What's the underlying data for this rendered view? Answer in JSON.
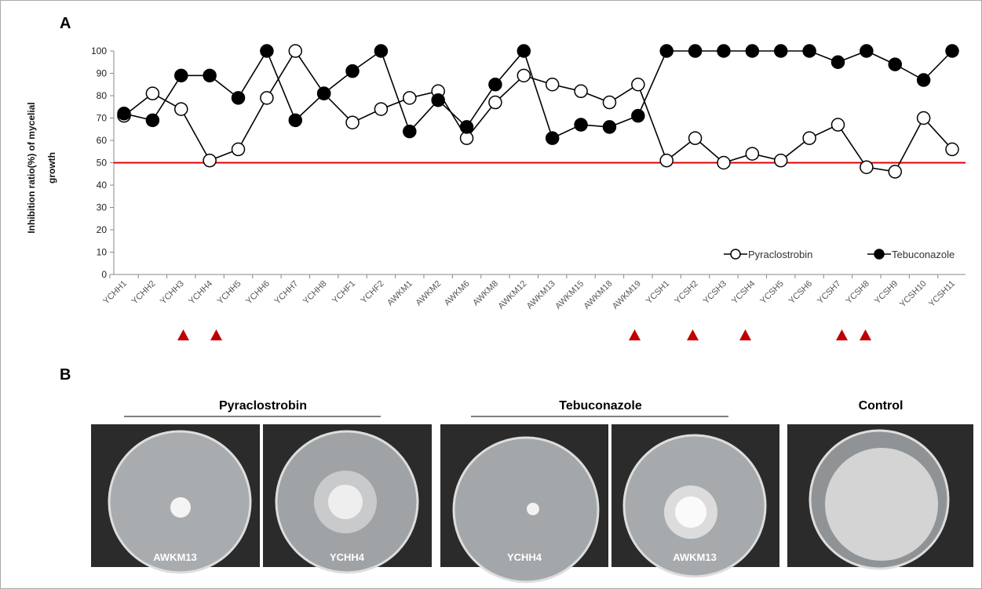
{
  "panel_labels": [
    "A",
    "B"
  ],
  "chart_data": {
    "type": "line",
    "y_label": "Inhibition ratio(%) of mycelial growth",
    "categories": [
      "YCHH1",
      "YCHH2",
      "YCHH3",
      "YCHH4",
      "YCHH5",
      "YCHH6",
      "YCHH7",
      "YCHH8",
      "YCHF1",
      "YCHF2",
      "AWKM1",
      "AWKM2",
      "AWKM6",
      "AWKM8",
      "AWKM12",
      "AWKM13",
      "AWKM15",
      "AWKM18",
      "AWKM19",
      "YCSH1",
      "YCSH2",
      "YCSH3",
      "YCSH4",
      "YCSH5",
      "YCSH6",
      "YCSH7",
      "YCSH8",
      "YCSH9",
      "YCSH10",
      "YCSH11"
    ],
    "series": [
      {
        "name": "Pyraclostrobin",
        "color": "#000000",
        "marker_fill": "#ffffff",
        "values": [
          71,
          81,
          74,
          51,
          56,
          79,
          100,
          81,
          68,
          74,
          79,
          82,
          61,
          77,
          89,
          85,
          82,
          77,
          85,
          51,
          61,
          50,
          54,
          51,
          61,
          67,
          48,
          46,
          70,
          56
        ]
      },
      {
        "name": "Tebuconazole",
        "color": "#000000",
        "marker_fill": "#000000",
        "values": [
          72,
          69,
          89,
          89,
          79,
          100,
          69,
          81,
          91,
          100,
          64,
          78,
          66,
          85,
          100,
          61,
          67,
          66,
          71,
          100,
          100,
          100,
          100,
          100,
          100,
          95,
          100,
          94,
          87,
          100
        ]
      }
    ],
    "ylim": [
      0,
      100
    ],
    "yticks": [
      0,
      10,
      20,
      30,
      40,
      50,
      60,
      70,
      80,
      90,
      100
    ],
    "reference_line": {
      "value": 50,
      "color": "#e00000"
    },
    "legend": "lower right"
  },
  "panel_b": {
    "groups": [
      "Pyraclostrobin",
      "Tebuconazole",
      "Control"
    ],
    "photo_labels": [
      "AWKM13",
      "YCHH4",
      "YCHH4",
      "AWKM13"
    ]
  }
}
